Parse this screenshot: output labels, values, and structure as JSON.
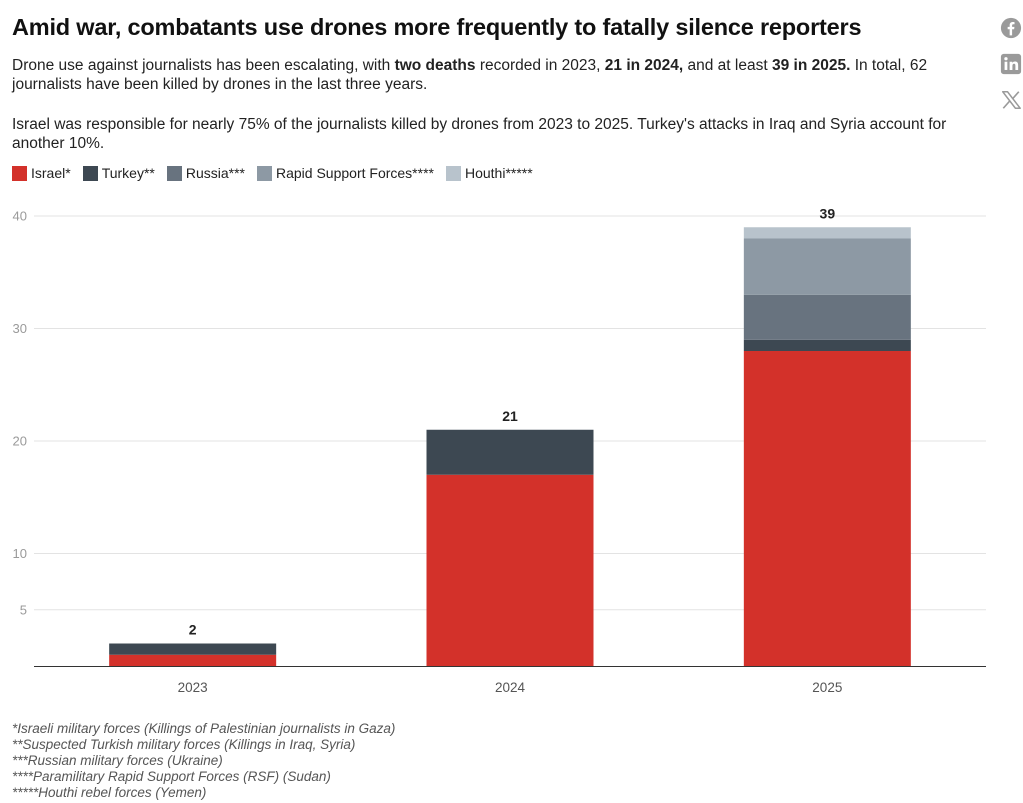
{
  "title": "Amid war, combatants use drones more frequently to fatally silence reporters",
  "description": {
    "p1": {
      "t1": "Drone use against journalists has been escalating, with ",
      "b1": "two deaths",
      "t2": " recorded in 2023, ",
      "b2": "21 in 2024,",
      "t3": " and at least ",
      "b3": "39 in 2025.",
      "t4": " In total, 62 journalists have been killed by drones in the last three years."
    },
    "p2": "Israel was responsible for nearly 75% of the journalists killed by drones from 2023 to 2025. Turkey's attacks in Iraq and Syria account for another 10%."
  },
  "share": {
    "facebook": "facebook-icon",
    "linkedin": "linkedin-icon",
    "x": "x-icon"
  },
  "chart_data": {
    "type": "bar",
    "stacked": true,
    "categories": [
      "2023",
      "2024",
      "2025"
    ],
    "series": [
      {
        "name": "Israel*",
        "color": "#d3312a",
        "values": [
          1,
          17,
          28
        ]
      },
      {
        "name": "Turkey**",
        "color": "#3d4852",
        "values": [
          1,
          4,
          1
        ]
      },
      {
        "name": "Russia***",
        "color": "#68737f",
        "values": [
          0,
          0,
          4
        ]
      },
      {
        "name": "Rapid Support Forces****",
        "color": "#8d99a4",
        "values": [
          0,
          0,
          5
        ]
      },
      {
        "name": "Houthi*****",
        "color": "#b8c3cc",
        "values": [
          0,
          0,
          1
        ]
      }
    ],
    "totals": [
      2,
      21,
      39
    ],
    "yticks": [
      5,
      10,
      20,
      30,
      40
    ],
    "ylim": [
      0,
      40
    ],
    "title": "Amid war, combatants use drones more frequently to fatally silence reporters",
    "xlabel": "",
    "ylabel": "",
    "grid": true,
    "legend_position": "top-left"
  },
  "footnotes": [
    "*Israeli military forces (Killings of Palestinian journalists in Gaza)",
    "**Suspected Turkish military forces (Killings in Iraq, Syria)",
    "***Russian military forces (Ukraine)",
    "****Paramilitary Rapid Support Forces (RSF) (Sudan)",
    "*****Houthi rebel forces (Yemen)"
  ]
}
